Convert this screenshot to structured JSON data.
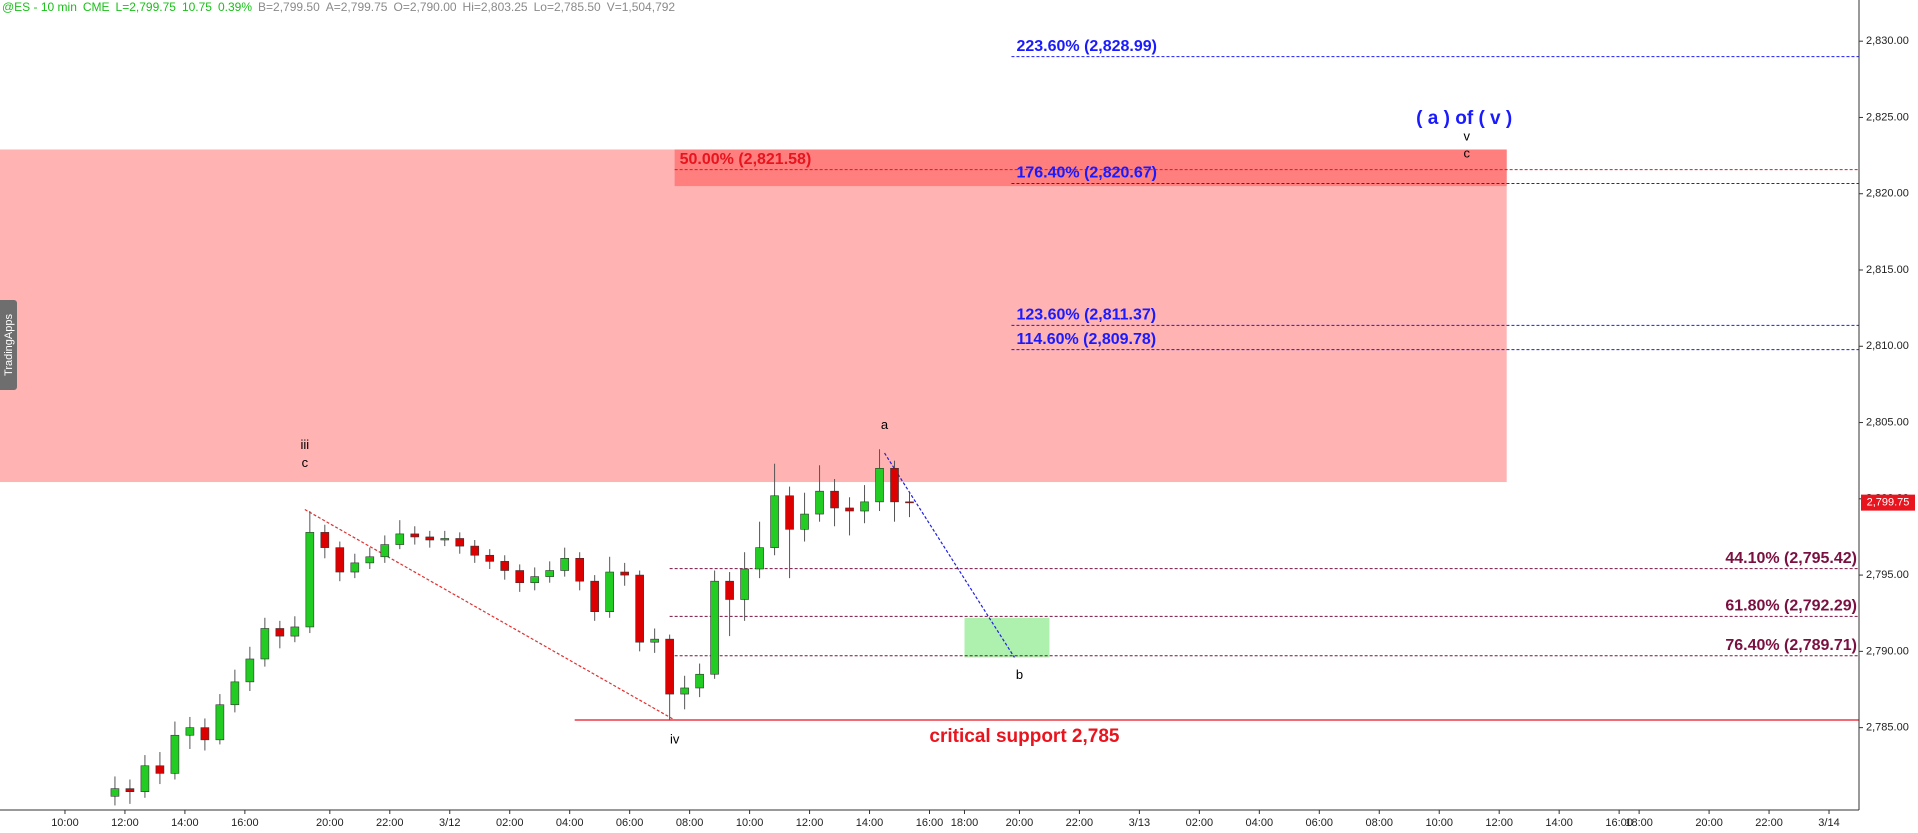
{
  "header": [
    {
      "text": "@ES - 10 min",
      "color": "#18c018"
    },
    {
      "text": "CME",
      "color": "#18c018"
    },
    {
      "text": "L=2,799.75",
      "color": "#18c018"
    },
    {
      "text": "10.75",
      "color": "#18c018"
    },
    {
      "text": "0.39%",
      "color": "#18c018"
    },
    {
      "text": "B=2,799.50",
      "color": "#8a8a8a"
    },
    {
      "text": "A=2,799.75",
      "color": "#8a8a8a"
    },
    {
      "text": "O=2,790.00",
      "color": "#8a8a8a"
    },
    {
      "text": "Hi=2,803.25",
      "color": "#8a8a8a"
    },
    {
      "text": "Lo=2,785.50",
      "color": "#8a8a8a"
    },
    {
      "text": "V=1,504,792",
      "color": "#8a8a8a"
    }
  ],
  "side_tab": "TradingApps",
  "chart_data": {
    "type": "candlestick",
    "up_color": "#22cc22",
    "down_color": "#dd0000",
    "xlim": [
      0,
      372
    ],
    "ylim": [
      2779.6,
      2832.7
    ],
    "xticks": [
      {
        "value": 13,
        "label": "10:00"
      },
      {
        "value": 25,
        "label": "12:00"
      },
      {
        "value": 37,
        "label": "14:00"
      },
      {
        "value": 49,
        "label": "16:00"
      },
      {
        "value": 66,
        "label": "20:00"
      },
      {
        "value": 78,
        "label": "22:00"
      },
      {
        "value": 90,
        "label": "3/12"
      },
      {
        "value": 102,
        "label": "02:00"
      },
      {
        "value": 114,
        "label": "04:00"
      },
      {
        "value": 126,
        "label": "06:00"
      },
      {
        "value": 138,
        "label": "08:00"
      },
      {
        "value": 150,
        "label": "10:00"
      },
      {
        "value": 162,
        "label": "12:00"
      },
      {
        "value": 174,
        "label": "14:00"
      },
      {
        "value": 186,
        "label": "16:00"
      },
      {
        "value": 193,
        "label": "18:00"
      },
      {
        "value": 204,
        "label": "20:00"
      },
      {
        "value": 216,
        "label": "22:00"
      },
      {
        "value": 228,
        "label": "3/13"
      },
      {
        "value": 240,
        "label": "02:00"
      },
      {
        "value": 252,
        "label": "04:00"
      },
      {
        "value": 264,
        "label": "06:00"
      },
      {
        "value": 276,
        "label": "08:00"
      },
      {
        "value": 288,
        "label": "10:00"
      },
      {
        "value": 300,
        "label": "12:00"
      },
      {
        "value": 312,
        "label": "14:00"
      },
      {
        "value": 324,
        "label": "16:00"
      },
      {
        "value": 328,
        "label": "18:00"
      },
      {
        "value": 342,
        "label": "20:00"
      },
      {
        "value": 354,
        "label": "22:00"
      },
      {
        "value": 366,
        "label": "3/14"
      }
    ],
    "yticks": [
      {
        "value": 2785,
        "label": "2,785.00"
      },
      {
        "value": 2790,
        "label": "2,790.00"
      },
      {
        "value": 2795,
        "label": "2,795.00"
      },
      {
        "value": 2800,
        "label": "2,800.00"
      },
      {
        "value": 2805,
        "label": "2,805.00"
      },
      {
        "value": 2810,
        "label": "2,810.00"
      },
      {
        "value": 2815,
        "label": "2,815.00"
      },
      {
        "value": 2820,
        "label": "2,820.00"
      },
      {
        "value": 2825,
        "label": "2,825.00"
      },
      {
        "value": 2830,
        "label": "2,830.00"
      }
    ],
    "candles": {
      "x": [
        23,
        26,
        29,
        32,
        35,
        38,
        41,
        44,
        47,
        50,
        53,
        56,
        59,
        62,
        65,
        68,
        71,
        74,
        77,
        80,
        83,
        86,
        89,
        92,
        95,
        98,
        101,
        104,
        107,
        110,
        113,
        116,
        119,
        122,
        125,
        128,
        131,
        134,
        137,
        140,
        143,
        146,
        149,
        152,
        155,
        158,
        161,
        164,
        167,
        170,
        173,
        176,
        179,
        182
      ],
      "open": [
        2780.5,
        2781.0,
        2780.8,
        2782.5,
        2782.0,
        2784.5,
        2785.0,
        2784.2,
        2786.5,
        2788.0,
        2789.5,
        2791.5,
        2791.0,
        2791.6,
        2797.8,
        2796.8,
        2795.2,
        2795.8,
        2796.2,
        2797.0,
        2797.7,
        2797.5,
        2797.3,
        2797.4,
        2796.9,
        2796.3,
        2795.9,
        2795.3,
        2794.5,
        2794.9,
        2795.3,
        2796.1,
        2794.6,
        2792.6,
        2795.2,
        2795.0,
        2790.6,
        2790.8,
        2787.2,
        2787.6,
        2788.5,
        2794.6,
        2793.4,
        2795.4,
        2796.8,
        2800.2,
        2798.0,
        2799.0,
        2800.5,
        2799.4,
        2799.2,
        2799.8,
        2802.0,
        2799.8
      ],
      "high": [
        2781.8,
        2781.6,
        2783.2,
        2783.4,
        2785.4,
        2785.7,
        2785.6,
        2787.2,
        2788.8,
        2790.3,
        2792.2,
        2792.0,
        2792.3,
        2799.2,
        2798.3,
        2797.2,
        2796.4,
        2796.8,
        2797.6,
        2798.6,
        2798.2,
        2797.9,
        2797.9,
        2797.8,
        2797.3,
        2796.7,
        2796.3,
        2795.7,
        2795.5,
        2795.9,
        2796.8,
        2796.5,
        2795.0,
        2796.2,
        2795.8,
        2795.3,
        2791.5,
        2791.1,
        2788.4,
        2789.2,
        2795.3,
        2795.2,
        2796.5,
        2798.5,
        2802.3,
        2800.8,
        2800.4,
        2802.2,
        2801.3,
        2800.1,
        2800.9,
        2803.25,
        2802.5,
        2800.4
      ],
      "low": [
        2779.9,
        2780.0,
        2780.4,
        2781.3,
        2781.6,
        2783.6,
        2783.5,
        2783.9,
        2786.0,
        2787.4,
        2789.0,
        2790.2,
        2790.6,
        2791.2,
        2796.1,
        2794.6,
        2794.8,
        2795.4,
        2795.8,
        2796.7,
        2797.0,
        2796.8,
        2796.9,
        2796.4,
        2795.8,
        2795.4,
        2794.7,
        2793.9,
        2794.0,
        2794.5,
        2794.9,
        2794.0,
        2792.0,
        2792.2,
        2794.3,
        2790.0,
        2789.9,
        2785.5,
        2786.2,
        2787.0,
        2788.2,
        2791.0,
        2792.0,
        2794.8,
        2796.3,
        2794.8,
        2797.2,
        2798.5,
        2798.2,
        2797.6,
        2798.4,
        2799.2,
        2798.5,
        2798.8
      ],
      "close": [
        2781.0,
        2780.8,
        2782.5,
        2782.0,
        2784.5,
        2785.0,
        2784.2,
        2786.5,
        2788.0,
        2789.5,
        2791.5,
        2791.0,
        2791.6,
        2797.8,
        2796.8,
        2795.2,
        2795.8,
        2796.2,
        2797.0,
        2797.7,
        2797.5,
        2797.3,
        2797.4,
        2796.9,
        2796.3,
        2795.9,
        2795.3,
        2794.5,
        2794.9,
        2795.3,
        2796.1,
        2794.6,
        2792.6,
        2795.2,
        2795.0,
        2790.6,
        2790.8,
        2787.2,
        2787.6,
        2788.5,
        2794.6,
        2793.4,
        2795.4,
        2796.8,
        2800.2,
        2798.0,
        2799.0,
        2800.5,
        2799.4,
        2799.2,
        2799.8,
        2802.0,
        2799.8,
        2799.75
      ]
    },
    "zones": [
      {
        "x": [
          0,
          301.5
        ],
        "y": [
          2801.1,
          2822.9
        ],
        "color": "#ffb3b3"
      },
      {
        "x": [
          135,
          301.5
        ],
        "y": [
          2820.5,
          2822.9
        ],
        "color": "#ff7f7f"
      },
      {
        "x": [
          193,
          210
        ],
        "y": [
          2789.6,
          2792.2
        ],
        "color": "#aef0ae"
      }
    ],
    "levels": [
      {
        "label": "223.60% (2,828.99)",
        "value": 2828.99,
        "x0": 202.4,
        "color": "#1a1aff",
        "label_side": "left"
      },
      {
        "label": "50.00% (2,821.58)",
        "value": 2821.58,
        "x0": 135,
        "color": "#e8141e",
        "label_side": "left"
      },
      {
        "label": "176.40% (2,820.67)",
        "value": 2820.67,
        "x0": 202.4,
        "color": "#1a1aff",
        "label_side": "left"
      },
      {
        "label": "123.60% (2,811.37)",
        "value": 2811.37,
        "x0": 202.4,
        "color": "#1a1aff",
        "label_side": "left"
      },
      {
        "label": "114.60% (2,809.78)",
        "value": 2809.78,
        "x0": 202.4,
        "color": "#1a1aff",
        "label_side": "left"
      },
      {
        "label": "44.10% (2,795.42)",
        "value": 2795.42,
        "x0": 134,
        "color": "#7a1040",
        "label_side": "right"
      },
      {
        "label": "61.80% (2,792.29)",
        "value": 2792.29,
        "x0": 134,
        "color": "#7a1040",
        "label_side": "right"
      },
      {
        "label": "76.40% (2,789.71)",
        "value": 2789.71,
        "x0": 134,
        "color": "#7a1040",
        "label_side": "right"
      }
    ],
    "support": {
      "value": 2785.5,
      "x0": 115,
      "color": "#e8141e"
    },
    "trend_lines": [
      {
        "x": [
          61,
          135
        ],
        "y": [
          2799.3,
          2785.5
        ],
        "color": "#e03030"
      },
      {
        "x": [
          177,
          203
        ],
        "y": [
          2803.0,
          2789.6
        ],
        "color": "#2020e0"
      }
    ],
    "annotations": [
      {
        "text": "iii",
        "x": 61,
        "y": 2803.5,
        "color": "#000000",
        "size": 13
      },
      {
        "text": "c",
        "x": 61,
        "y": 2802.3,
        "color": "#000000",
        "size": 13
      },
      {
        "text": "iv",
        "x": 135,
        "y": 2784.2,
        "color": "#000000",
        "size": 13
      },
      {
        "text": "a",
        "x": 177,
        "y": 2804.8,
        "color": "#000000",
        "size": 13
      },
      {
        "text": "b",
        "x": 204,
        "y": 2788.4,
        "color": "#000000",
        "size": 13
      },
      {
        "text": "( a ) of ( v )",
        "x": 293,
        "y": 2824.9,
        "color": "#1a1aff",
        "size": 19
      },
      {
        "text": "v",
        "x": 293.5,
        "y": 2823.7,
        "color": "#000000",
        "size": 13
      },
      {
        "text": "c",
        "x": 293.5,
        "y": 2822.6,
        "color": "#000000",
        "size": 13
      },
      {
        "text": "critical support 2,785",
        "x": 205,
        "y": 2784.4,
        "color": "#e8141e",
        "size": 19
      }
    ],
    "last_price": {
      "value": 2799.75,
      "label": "2,799.75",
      "color": "#e8141e"
    }
  }
}
